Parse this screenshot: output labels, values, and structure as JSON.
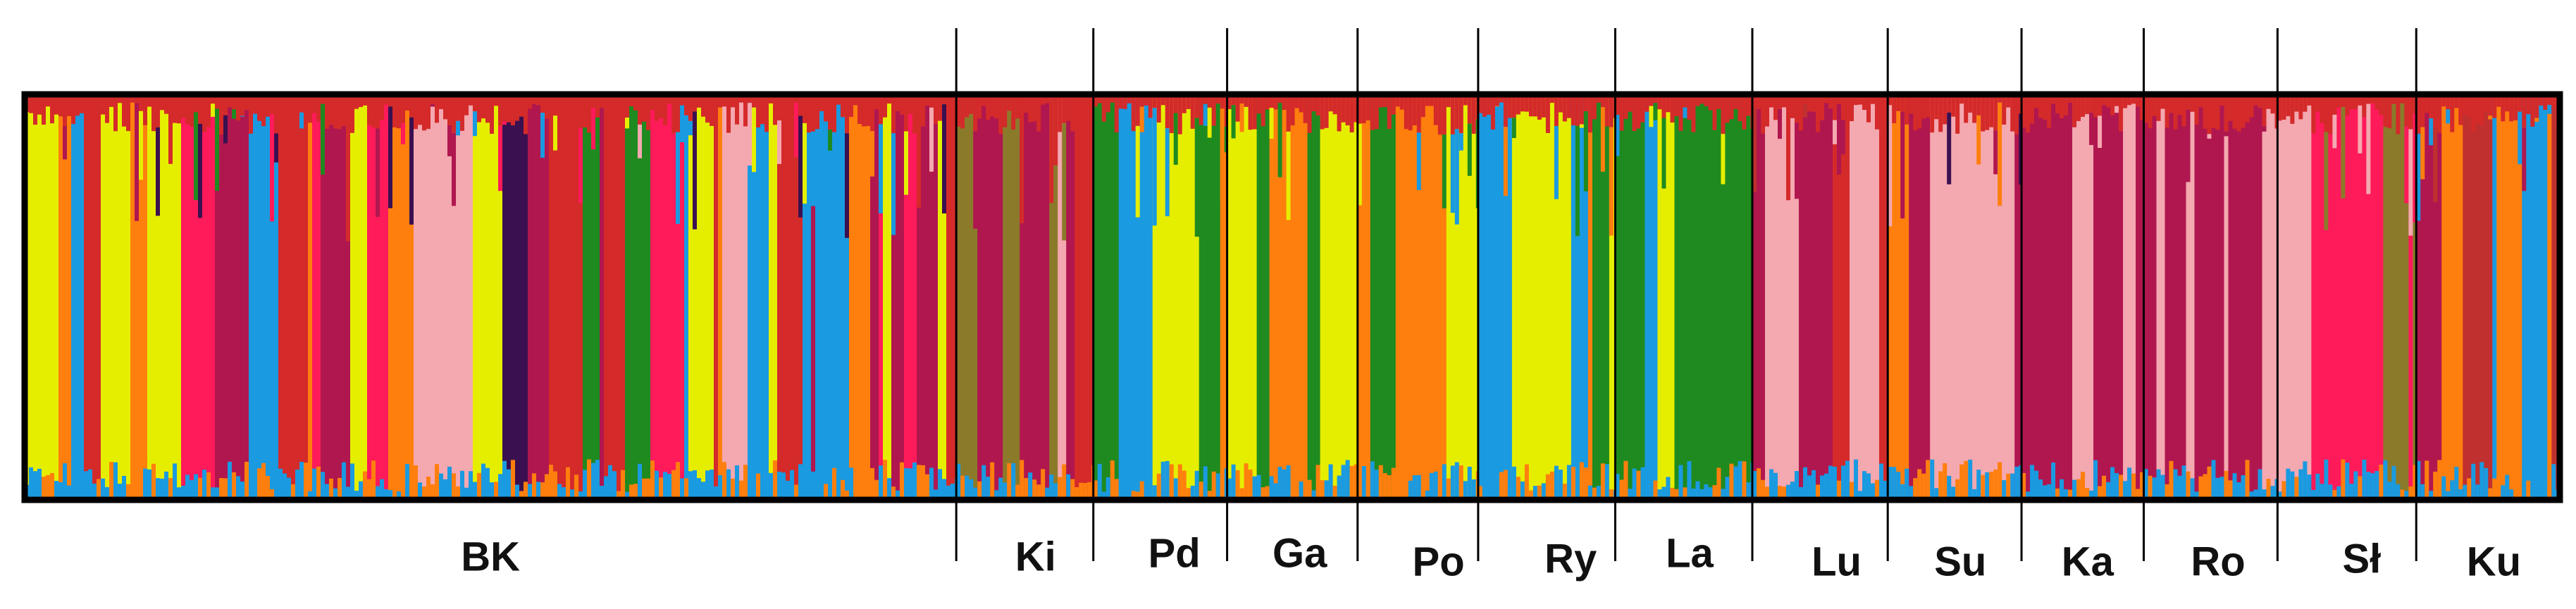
{
  "groups": [
    "BK",
    "Ki",
    "Pd",
    "Ga",
    "Po",
    "Ry",
    "La",
    "Lu",
    "Su",
    "Ka",
    "Ro",
    "Sł",
    "Ku"
  ]
}
